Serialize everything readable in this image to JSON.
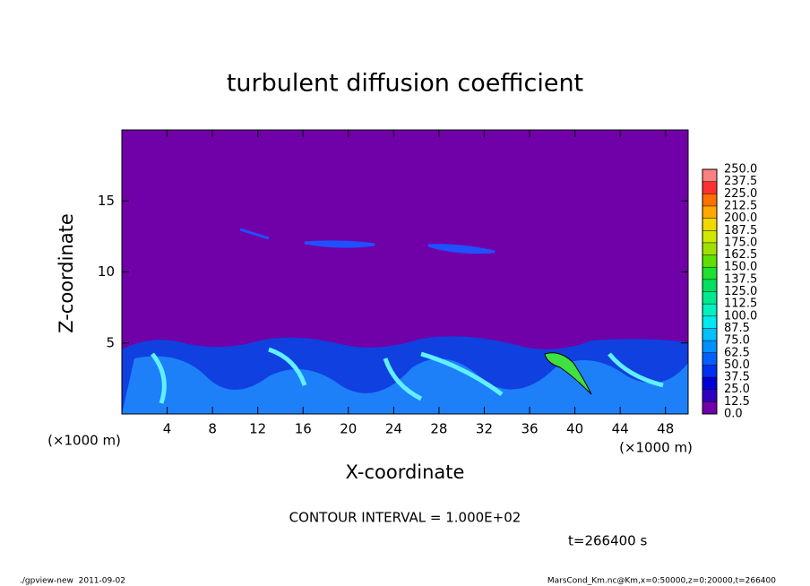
{
  "chart_data": {
    "type": "contour",
    "title": "turbulent diffusion coefficient",
    "xlabel": "X-coordinate",
    "ylabel": "Z-coordinate",
    "x_unit_label": "(×1000 m)",
    "y_unit_label": "(×1000 m)",
    "xlim": [
      0,
      50
    ],
    "ylim": [
      0,
      20
    ],
    "xticks": [
      4,
      8,
      12,
      16,
      20,
      24,
      28,
      32,
      36,
      40,
      44,
      48
    ],
    "yticks": [
      5,
      10,
      15
    ],
    "annotation": "CONTOUR INTERVAL = 1.000E+02",
    "time_label": "t=266400 s",
    "footer_left": "./gpview-new  2011-09-02",
    "footer_right": "MarsCond_Km.nc@Km,x=0:50000,z=0:20000,t=266400",
    "colorbar": {
      "levels": [
        {
          "value": 0,
          "label": "0.0"
        },
        12.5,
        {
          "value": 25,
          "label": "25.0"
        },
        37.5,
        {
          "value": 50,
          "label": "50.0"
        },
        62.5,
        {
          "value": 75,
          "label": "75.0"
        },
        87.5,
        {
          "value": 100,
          "label": "100.0"
        },
        112.5,
        {
          "value": 125,
          "label": "125.0"
        },
        137.5,
        {
          "value": 150,
          "label": "150.0"
        },
        162.5,
        {
          "value": 175,
          "label": "175.0"
        },
        187.5,
        {
          "value": 200,
          "label": "200.0"
        },
        212.5,
        {
          "value": 225,
          "label": "225.0"
        },
        237.5,
        {
          "value": 250,
          "label": "250.0"
        }
      ],
      "colors": [
        "#7000a8",
        "#3000c0",
        "#0000d8",
        "#0030f0",
        "#0060ff",
        "#0090ff",
        "#00c0ff",
        "#00e8f0",
        "#00f0c0",
        "#00e890",
        "#00e060",
        "#20e030",
        "#60e000",
        "#a0e000",
        "#d0e800",
        "#f0d800",
        "#ffa800",
        "#ff7000",
        "#ff3030",
        "#ff8080"
      ]
    }
  }
}
